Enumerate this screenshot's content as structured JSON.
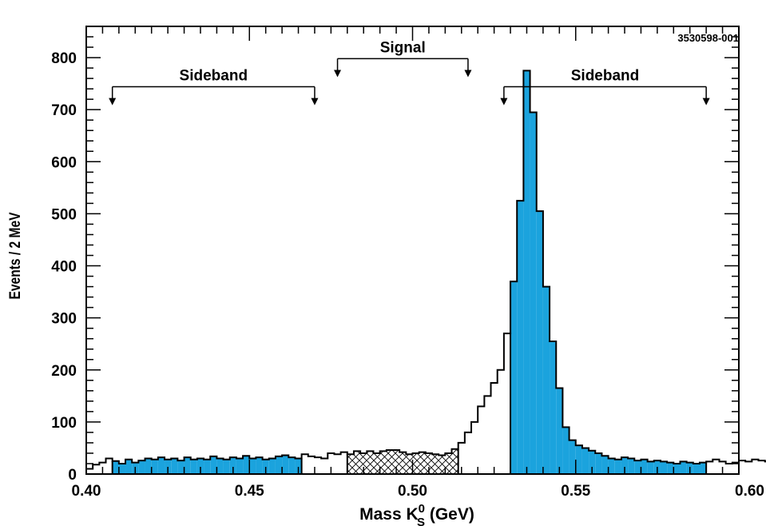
{
  "figure_id": "3530598-001",
  "chart_data": {
    "type": "bar",
    "title": "",
    "xlabel_parts": {
      "prefix": "Mass  K",
      "sup": "0",
      "sub": "S",
      "suffix": " (GeV)"
    },
    "ylabel": "Events / 2 MeV",
    "xlim": [
      0.4,
      0.6
    ],
    "ylim": [
      0,
      860
    ],
    "grid": false,
    "x_ticks": [
      {
        "value": 0.4,
        "label": "0.40"
      },
      {
        "value": 0.45,
        "label": "0.45"
      },
      {
        "value": 0.5,
        "label": "0.50"
      },
      {
        "value": 0.55,
        "label": "0.55"
      },
      {
        "value": 0.6,
        "label": "0.60"
      }
    ],
    "y_ticks": [
      {
        "value": 0,
        "label": "0"
      },
      {
        "value": 100,
        "label": "100"
      },
      {
        "value": 200,
        "label": "200"
      },
      {
        "value": 300,
        "label": "300"
      },
      {
        "value": 400,
        "label": "400"
      },
      {
        "value": 500,
        "label": "500"
      },
      {
        "value": 600,
        "label": "600"
      },
      {
        "value": 700,
        "label": "700"
      },
      {
        "value": 800,
        "label": "800"
      }
    ],
    "bin_width": 0.002,
    "bin_start": 0.4,
    "values": [
      10,
      18,
      22,
      30,
      25,
      20,
      28,
      22,
      26,
      30,
      28,
      32,
      28,
      30,
      26,
      32,
      28,
      30,
      28,
      34,
      30,
      28,
      32,
      30,
      35,
      30,
      32,
      28,
      30,
      34,
      36,
      32,
      30,
      38,
      34,
      32,
      30,
      40,
      38,
      42,
      38,
      44,
      40,
      44,
      40,
      44,
      46,
      46,
      42,
      38,
      40,
      42,
      40,
      38,
      36,
      40,
      48,
      60,
      80,
      100,
      130,
      150,
      175,
      200,
      270,
      370,
      525,
      775,
      695,
      505,
      360,
      255,
      165,
      90,
      65,
      55,
      50,
      45,
      40,
      35,
      30,
      28,
      32,
      30,
      26,
      28,
      24,
      26,
      24,
      22,
      20,
      24,
      22,
      20,
      22,
      24,
      28,
      24,
      20,
      22,
      26,
      24,
      28,
      26,
      24,
      20,
      18,
      20,
      22,
      24,
      26,
      22,
      20,
      18,
      20,
      22,
      24,
      26,
      24,
      22,
      20,
      18,
      20,
      24,
      26,
      30,
      28,
      24,
      22,
      20,
      22,
      24,
      26,
      28,
      30,
      26,
      24,
      22,
      20,
      18,
      20,
      22,
      24,
      22,
      20,
      18,
      20,
      22,
      20,
      18,
      16,
      18,
      20,
      22,
      24,
      20,
      22,
      24,
      26,
      30,
      28,
      26,
      24,
      22,
      20,
      18,
      20,
      22,
      24,
      26,
      28,
      30,
      28,
      26,
      24,
      22,
      20,
      22,
      24,
      26,
      28,
      30,
      32,
      30,
      28
    ],
    "regions": [
      {
        "name": "Sideband",
        "kind": "sideband",
        "x_range": [
          0.408,
          0.466
        ],
        "fill": "#1ba3dd",
        "label_x_range": [
          0.408,
          0.47
        ]
      },
      {
        "name": "Signal",
        "kind": "signal",
        "x_range": [
          0.48,
          0.514
        ],
        "fill": "crosshatch",
        "label_x_range": [
          0.477,
          0.517
        ]
      },
      {
        "name": "Sideband",
        "kind": "sideband",
        "x_range": [
          0.53,
          0.59
        ],
        "fill": "#1ba3dd",
        "label_x_range": [
          0.528,
          0.59
        ]
      }
    ],
    "annotations": [
      {
        "text": "Sideband",
        "x_from": 0.408,
        "x_to": 0.47,
        "y_level": 744,
        "tick_down_to": 710
      },
      {
        "text": "Signal",
        "x_from": 0.477,
        "x_to": 0.517,
        "y_level": 798,
        "tick_down_to": 764
      },
      {
        "text": "Sideband",
        "x_from": 0.528,
        "x_to": 0.59,
        "y_level": 744,
        "tick_down_to": 710
      }
    ],
    "colors": {
      "sideband_fill": "#1ba3dd",
      "outline": "#000000"
    }
  }
}
